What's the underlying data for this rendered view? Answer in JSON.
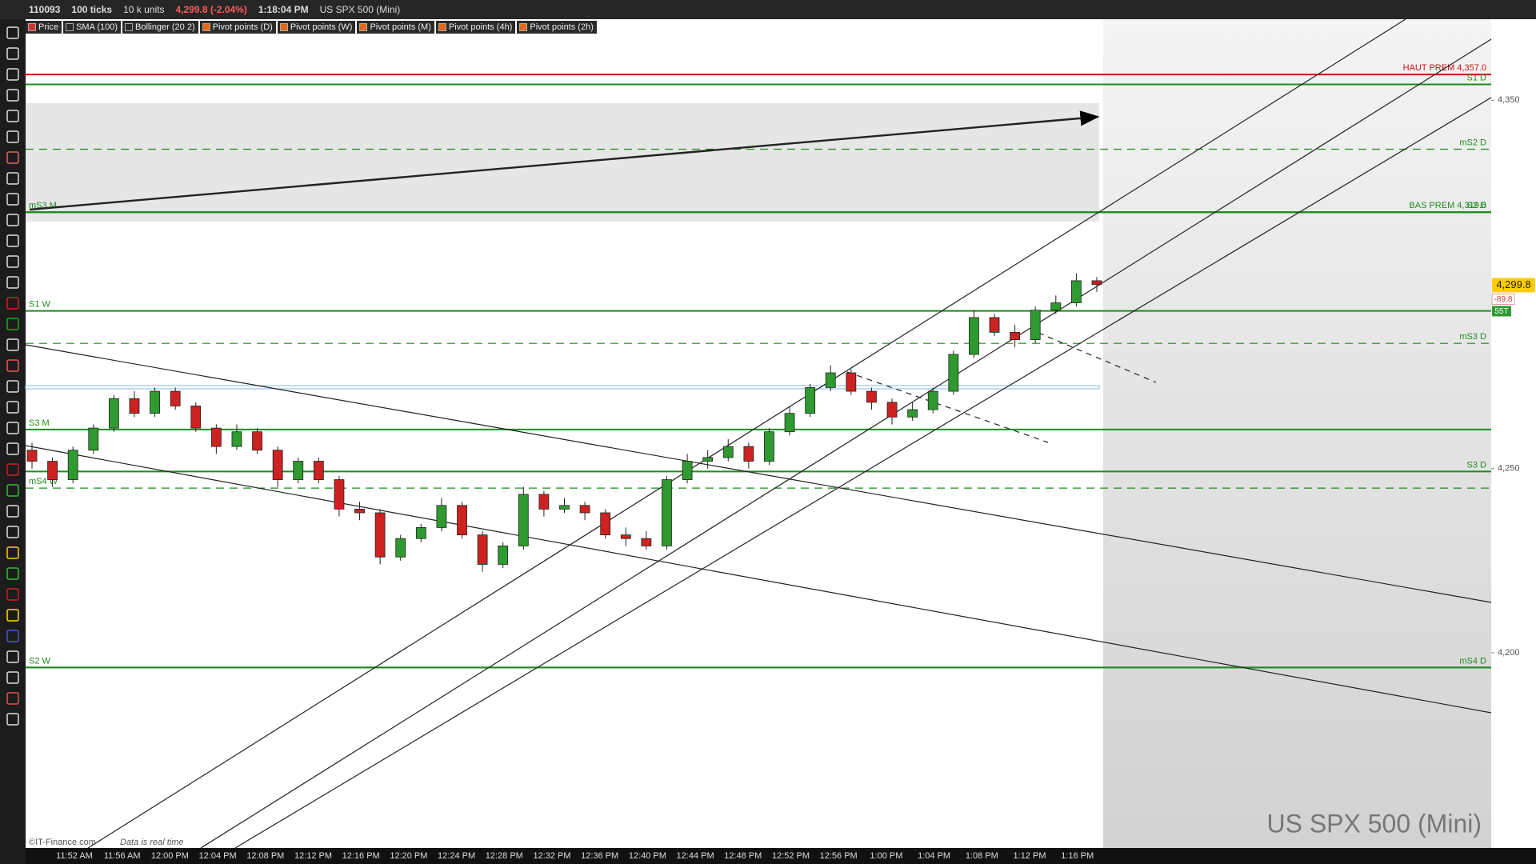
{
  "toolbar": {
    "account": "110093",
    "interval": "100 ticks",
    "units": "10 k units",
    "quote": "4,299.8 (-2.04%)",
    "time": "1:18:04 PM",
    "instrument": "US SPX 500 (Mini)"
  },
  "indicators": [
    "Price",
    "SMA (100)",
    "Bollinger (20 2)",
    "Pivot points (D)",
    "Pivot points (W)",
    "Pivot points (M)",
    "Pivot points (4h)",
    "Pivot points (2h)"
  ],
  "footer": {
    "copyright": "©IT-Finance.com",
    "realtime": "Data is real time"
  },
  "chart_data": {
    "type": "candlestick",
    "title": "US SPX 500 (Mini)",
    "up_color": "#2f9a2f",
    "down_color": "#cc2222",
    "ylim": [
      4147,
      4372
    ],
    "yticks": [
      {
        "value": 4350,
        "label": "4,350"
      },
      {
        "value": 4250,
        "label": "4,250"
      },
      {
        "value": 4200,
        "label": "4,200"
      }
    ],
    "categories": [
      "11:52 AM",
      "11:56 AM",
      "12:00 PM",
      "12:04 PM",
      "12:08 PM",
      "12:12 PM",
      "12:16 PM",
      "12:20 PM",
      "12:24 PM",
      "12:28 PM",
      "12:32 PM",
      "12:36 PM",
      "12:40 PM",
      "12:44 PM",
      "12:48 PM",
      "12:52 PM",
      "12:56 PM",
      "1:00 PM",
      "1:04 PM",
      "1:08 PM",
      "1:12 PM",
      "1:16 PM"
    ],
    "ohlc": [
      [
        4255,
        4257,
        4250,
        4252
      ],
      [
        4252,
        4253,
        4245,
        4247
      ],
      [
        4247,
        4256,
        4246,
        4255
      ],
      [
        4255,
        4262,
        4254,
        4261
      ],
      [
        4261,
        4270,
        4260,
        4269
      ],
      [
        4269,
        4271,
        4264,
        4265
      ],
      [
        4265,
        4272,
        4264,
        4271
      ],
      [
        4271,
        4272,
        4266,
        4267
      ],
      [
        4267,
        4268,
        4260,
        4261
      ],
      [
        4261,
        4262,
        4254,
        4256
      ],
      [
        4256,
        4262,
        4255,
        4260
      ],
      [
        4260,
        4261,
        4254,
        4255
      ],
      [
        4255,
        4256,
        4245,
        4247
      ],
      [
        4247,
        4253,
        4246,
        4252
      ],
      [
        4252,
        4253,
        4246,
        4247
      ],
      [
        4247,
        4248,
        4237,
        4239
      ],
      [
        4239,
        4241,
        4236,
        4238
      ],
      [
        4238,
        4239,
        4224,
        4226
      ],
      [
        4226,
        4232,
        4225,
        4231
      ],
      [
        4231,
        4235,
        4230,
        4234
      ],
      [
        4234,
        4242,
        4233,
        4240
      ],
      [
        4240,
        4241,
        4231,
        4232
      ],
      [
        4232,
        4233,
        4222,
        4224
      ],
      [
        4224,
        4230,
        4223,
        4229
      ],
      [
        4229,
        4245,
        4228,
        4243
      ],
      [
        4243,
        4244,
        4237,
        4239
      ],
      [
        4239,
        4242,
        4238,
        4240
      ],
      [
        4240,
        4241,
        4236,
        4238
      ],
      [
        4238,
        4239,
        4231,
        4232
      ],
      [
        4232,
        4234,
        4229,
        4231
      ],
      [
        4231,
        4233,
        4228,
        4229
      ],
      [
        4229,
        4248,
        4228,
        4247
      ],
      [
        4247,
        4254,
        4246,
        4252
      ],
      [
        4252,
        4255,
        4250,
        4253
      ],
      [
        4253,
        4258,
        4252,
        4256
      ],
      [
        4256,
        4257,
        4250,
        4252
      ],
      [
        4252,
        4261,
        4251,
        4260
      ],
      [
        4260,
        4267,
        4259,
        4265
      ],
      [
        4265,
        4273,
        4264,
        4272
      ],
      [
        4272,
        4278,
        4271,
        4276
      ],
      [
        4276,
        4277,
        4270,
        4271
      ],
      [
        4271,
        4272,
        4266,
        4268
      ],
      [
        4268,
        4269,
        4262,
        4264
      ],
      [
        4264,
        4268,
        4263,
        4266
      ],
      [
        4266,
        4272,
        4265,
        4271
      ],
      [
        4271,
        4282,
        4270,
        4281
      ],
      [
        4281,
        4293,
        4280,
        4291
      ],
      [
        4291,
        4292,
        4286,
        4287
      ],
      [
        4287,
        4289,
        4283,
        4285
      ],
      [
        4285,
        4294,
        4284,
        4293
      ],
      [
        4293,
        4297,
        4292,
        4295
      ],
      [
        4295,
        4303,
        4294,
        4301
      ],
      [
        4301,
        4302,
        4298,
        4300
      ]
    ],
    "last": {
      "value": 4299.8,
      "label": "4,299.8"
    },
    "change_points": -89.8,
    "countdown": "55T",
    "levels_right": [
      {
        "name": "HAUT PREM 4,357.0",
        "value": 4357.0,
        "color": "#cc1111",
        "style": "solid"
      },
      {
        "name": "S1 D",
        "value": 4354.3,
        "color": "#1e8c1e",
        "style": "solid"
      },
      {
        "name": "mS2 D",
        "value": 4336.7,
        "color": "#1e8c1e",
        "style": "dashed"
      },
      {
        "name": "BAS PREM 4,319.6",
        "value": 4319.6,
        "color": "#1e8c1e",
        "style": "solid"
      },
      {
        "name": "S2 D",
        "value": 4319.6,
        "color": "#1e8c1e",
        "style": "solid"
      },
      {
        "name": "mS3 D",
        "value": 4284.0,
        "color": "#1e8c1e",
        "style": "dashed"
      },
      {
        "name": "S3 D",
        "value": 4249.2,
        "color": "#1e8c1e",
        "style": "solid"
      },
      {
        "name": "mS4 D",
        "value": 4196.0,
        "color": "#1e8c1e",
        "style": "solid"
      }
    ],
    "levels_left": [
      {
        "name": "mS3 M",
        "value": 4319.6,
        "color": "#1e8c1e",
        "style": "solid"
      },
      {
        "name": "S1 W",
        "value": 4292.8,
        "color": "#1e8c1e",
        "style": "solid"
      },
      {
        "name": "S3 M",
        "value": 4260.6,
        "color": "#1e8c1e",
        "style": "solid"
      },
      {
        "name": "mS4 W",
        "value": 4244.7,
        "color": "#1e8c1e",
        "style": "dashed"
      },
      {
        "name": "S2 W",
        "value": 4196.0,
        "color": "#1e8c1e",
        "style": "solid"
      }
    ],
    "band": {
      "value": 4272.1,
      "color": "#9cc3ea"
    }
  }
}
